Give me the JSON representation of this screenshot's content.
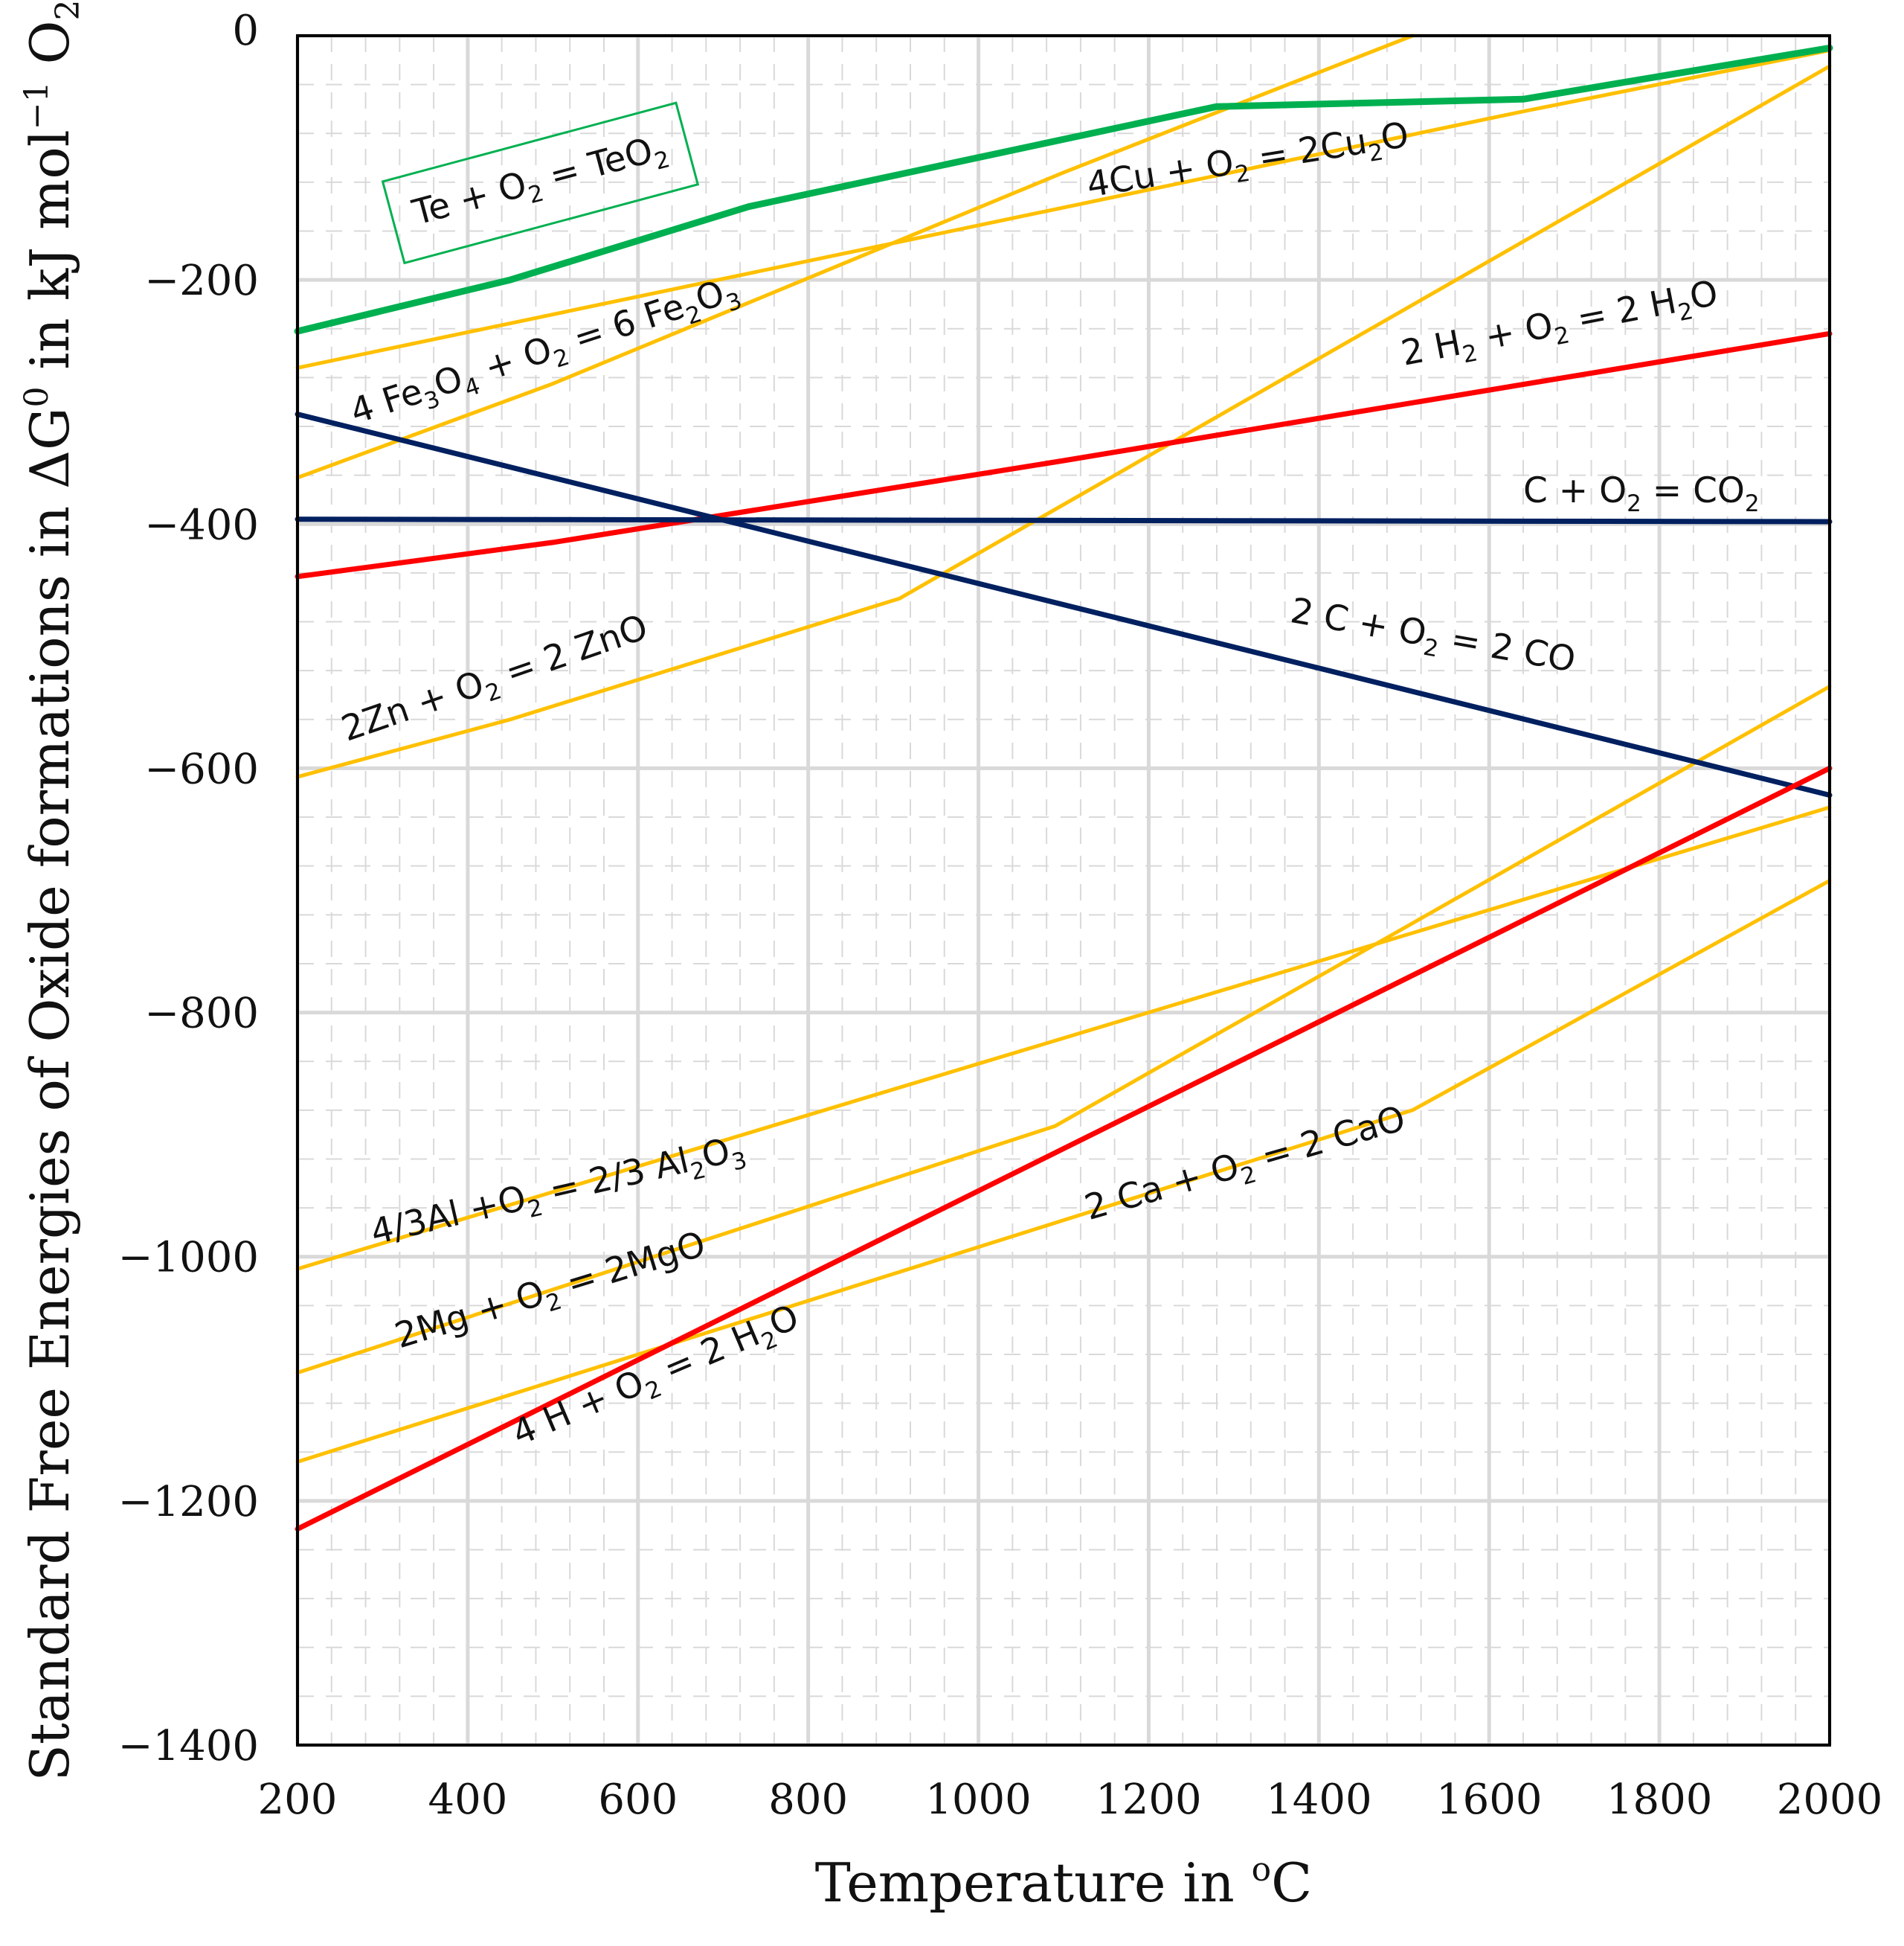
{
  "chart_data": {
    "type": "line",
    "xlabel": "Temperature in °C",
    "xlabel_parts": {
      "prefix": "Temperature in ",
      "sup": "o",
      "suffix": "C"
    },
    "ylabel": "Standard Free Energies of Oxide formations in ΔG0 in kJ mol−1 O2",
    "ylabel_parts": {
      "p1": "Standard Free Energies of Oxide formations in ΔG",
      "sup1": "0",
      "p2": " in kJ mol",
      "sup2": "−1",
      "p3": " O",
      "sub1": "2"
    },
    "xlim": [
      200,
      2000
    ],
    "ylim": [
      -1400,
      0
    ],
    "x_ticks": [
      200,
      400,
      600,
      800,
      1000,
      1200,
      1400,
      1600,
      1800,
      2000
    ],
    "x_tick_labels": [
      "200",
      "400",
      "600",
      "800",
      "1000",
      "1200",
      "1400",
      "1600",
      "1800",
      "2000"
    ],
    "y_ticks": [
      0,
      -200,
      -400,
      -600,
      -800,
      -1000,
      -1200,
      -1400
    ],
    "y_tick_labels": [
      "0",
      "−200",
      "−400",
      "−600",
      "−800",
      "−1000",
      "−1200",
      "−1400"
    ],
    "grid": {
      "major": true,
      "minor": true
    },
    "colors": {
      "yellow": "#ffc000",
      "green": "#00b050",
      "red": "#ff0000",
      "navy": "#002060",
      "major_grid": "#d9d9d9",
      "minor_grid": "#d9d9d9",
      "axis": "#000000"
    },
    "series": [
      {
        "name": "Te + O2 = TeO2",
        "color": "green",
        "width": 9,
        "x": [
          200,
          450,
          730,
          1280,
          1640,
          2000
        ],
        "y": [
          -242,
          -200,
          -140,
          -58,
          -52,
          -10
        ],
        "label": {
          "parts": [
            [
              "Te + O",
              ""
            ],
            [
              "2",
              "sub"
            ],
            [
              " = TeO",
              ""
            ],
            [
              "2",
              "sub"
            ]
          ],
          "x": 340,
          "y": -155,
          "angle": -15,
          "boxed": true
        }
      },
      {
        "name": "4Cu + O2 = 2Cu2O",
        "color": "yellow",
        "width": 5,
        "x": [
          200,
          1640,
          2000
        ],
        "y": [
          -272,
          -62,
          -12
        ],
        "label": {
          "parts": [
            [
              "4Cu + O",
              ""
            ],
            [
              "2",
              "sub"
            ],
            [
              " = 2Cu",
              ""
            ],
            [
              "2",
              "sub"
            ],
            [
              "O",
              ""
            ]
          ],
          "x": 1130,
          "y": -132,
          "angle": -9,
          "boxed": false
        }
      },
      {
        "name": "4 Fe3O4 + O2 = 6 Fe2O3",
        "color": "yellow",
        "width": 5,
        "x": [
          200,
          500,
          1100,
          1510
        ],
        "y": [
          -362,
          -285,
          -112,
          0
        ],
        "label": {
          "parts": [
            [
              "4 Fe",
              ""
            ],
            [
              "3",
              "sub"
            ],
            [
              "O",
              ""
            ],
            [
              "4",
              "sub"
            ],
            [
              " + O",
              ""
            ],
            [
              "2",
              "sub"
            ],
            [
              " = 6 Fe",
              ""
            ],
            [
              "2",
              "sub"
            ],
            [
              "O",
              ""
            ],
            [
              "3",
              "sub"
            ]
          ],
          "x": 268,
          "y": -318,
          "angle": -18,
          "boxed": false
        }
      },
      {
        "name": "2 H2 + O2 = 2 H2O",
        "color": "red",
        "width": 7,
        "x": [
          200,
          500,
          1100,
          2000
        ],
        "y": [
          -443,
          -415,
          -348,
          -244
        ],
        "label": {
          "parts": [
            [
              "2 H",
              ""
            ],
            [
              "2",
              "sub"
            ],
            [
              " + O",
              ""
            ],
            [
              "2",
              "sub"
            ],
            [
              " = 2 H",
              ""
            ],
            [
              "2",
              "sub"
            ],
            [
              "O",
              ""
            ]
          ],
          "x": 1500,
          "y": -270,
          "angle": -11,
          "boxed": false
        }
      },
      {
        "name": "C + O2 = CO2",
        "color": "navy",
        "width": 7,
        "x": [
          200,
          2000
        ],
        "y": [
          -396,
          -398
        ],
        "label": {
          "parts": [
            [
              "C + O",
              ""
            ],
            [
              "2",
              "sub"
            ],
            [
              " = CO",
              ""
            ],
            [
              "2",
              "sub"
            ]
          ],
          "x": 1640,
          "y": -382,
          "angle": 0,
          "boxed": false
        }
      },
      {
        "name": "2 C + O2 = 2 CO",
        "color": "navy",
        "width": 7,
        "x": [
          200,
          2000
        ],
        "y": [
          -310,
          -622
        ],
        "label": {
          "parts": [
            [
              "2 C + O",
              ""
            ],
            [
              "2",
              "sub"
            ],
            [
              " = 2 CO",
              ""
            ]
          ],
          "x": 1365,
          "y": -480,
          "angle": 10,
          "boxed": false
        }
      },
      {
        "name": "2Zn + O2 = 2 ZnO",
        "color": "yellow",
        "width": 5,
        "x": [
          200,
          450,
          907,
          2000
        ],
        "y": [
          -607,
          -560,
          -461,
          -25
        ],
        "label": {
          "parts": [
            [
              "2Zn + O",
              ""
            ],
            [
              "2",
              "sub"
            ],
            [
              " = 2 ZnO",
              ""
            ]
          ],
          "x": 258,
          "y": -578,
          "angle": -19,
          "boxed": false
        }
      },
      {
        "name": "4/3Al + O2 = 2/3 Al2O3",
        "color": "yellow",
        "width": 5,
        "x": [
          200,
          2000
        ],
        "y": [
          -1010,
          -632
        ],
        "label": {
          "parts": [
            [
              "4/3Al +O",
              ""
            ],
            [
              "2",
              "sub"
            ],
            [
              " = 2/3 Al",
              ""
            ],
            [
              "2",
              "sub"
            ],
            [
              "O",
              ""
            ],
            [
              "3",
              "sub"
            ]
          ],
          "x": 290,
          "y": -990,
          "angle": -13,
          "boxed": false
        }
      },
      {
        "name": "2Mg + O2 = 2MgO",
        "color": "yellow",
        "width": 5,
        "x": [
          200,
          1090,
          2000
        ],
        "y": [
          -1095,
          -893,
          -533
        ],
        "label": {
          "parts": [
            [
              "2Mg + O",
              ""
            ],
            [
              "2",
              "sub"
            ],
            [
              " = 2MgO",
              ""
            ]
          ],
          "x": 320,
          "y": -1075,
          "angle": -17,
          "boxed": false
        }
      },
      {
        "name": "4 H + O2 = 2 H2O",
        "color": "red",
        "width": 7,
        "x": [
          200,
          2000
        ],
        "y": [
          -1223,
          -600
        ],
        "label": {
          "parts": [
            [
              "4 H + O",
              ""
            ],
            [
              "2",
              "sub"
            ],
            [
              "  =  2 H",
              ""
            ],
            [
              "2",
              "sub"
            ],
            [
              "O",
              ""
            ]
          ],
          "x": 460,
          "y": -1155,
          "angle": -23,
          "boxed": false
        }
      },
      {
        "name": "2 Ca + O2 = 2 CaO",
        "color": "yellow",
        "width": 5,
        "x": [
          200,
          1510,
          2000
        ],
        "y": [
          -1168,
          -880,
          -692
        ],
        "label": {
          "parts": [
            [
              "2 Ca + O",
              ""
            ],
            [
              "2",
              "sub"
            ],
            [
              " = 2 CaO",
              ""
            ]
          ],
          "x": 1130,
          "y": -970,
          "angle": -16,
          "boxed": false
        }
      }
    ]
  }
}
